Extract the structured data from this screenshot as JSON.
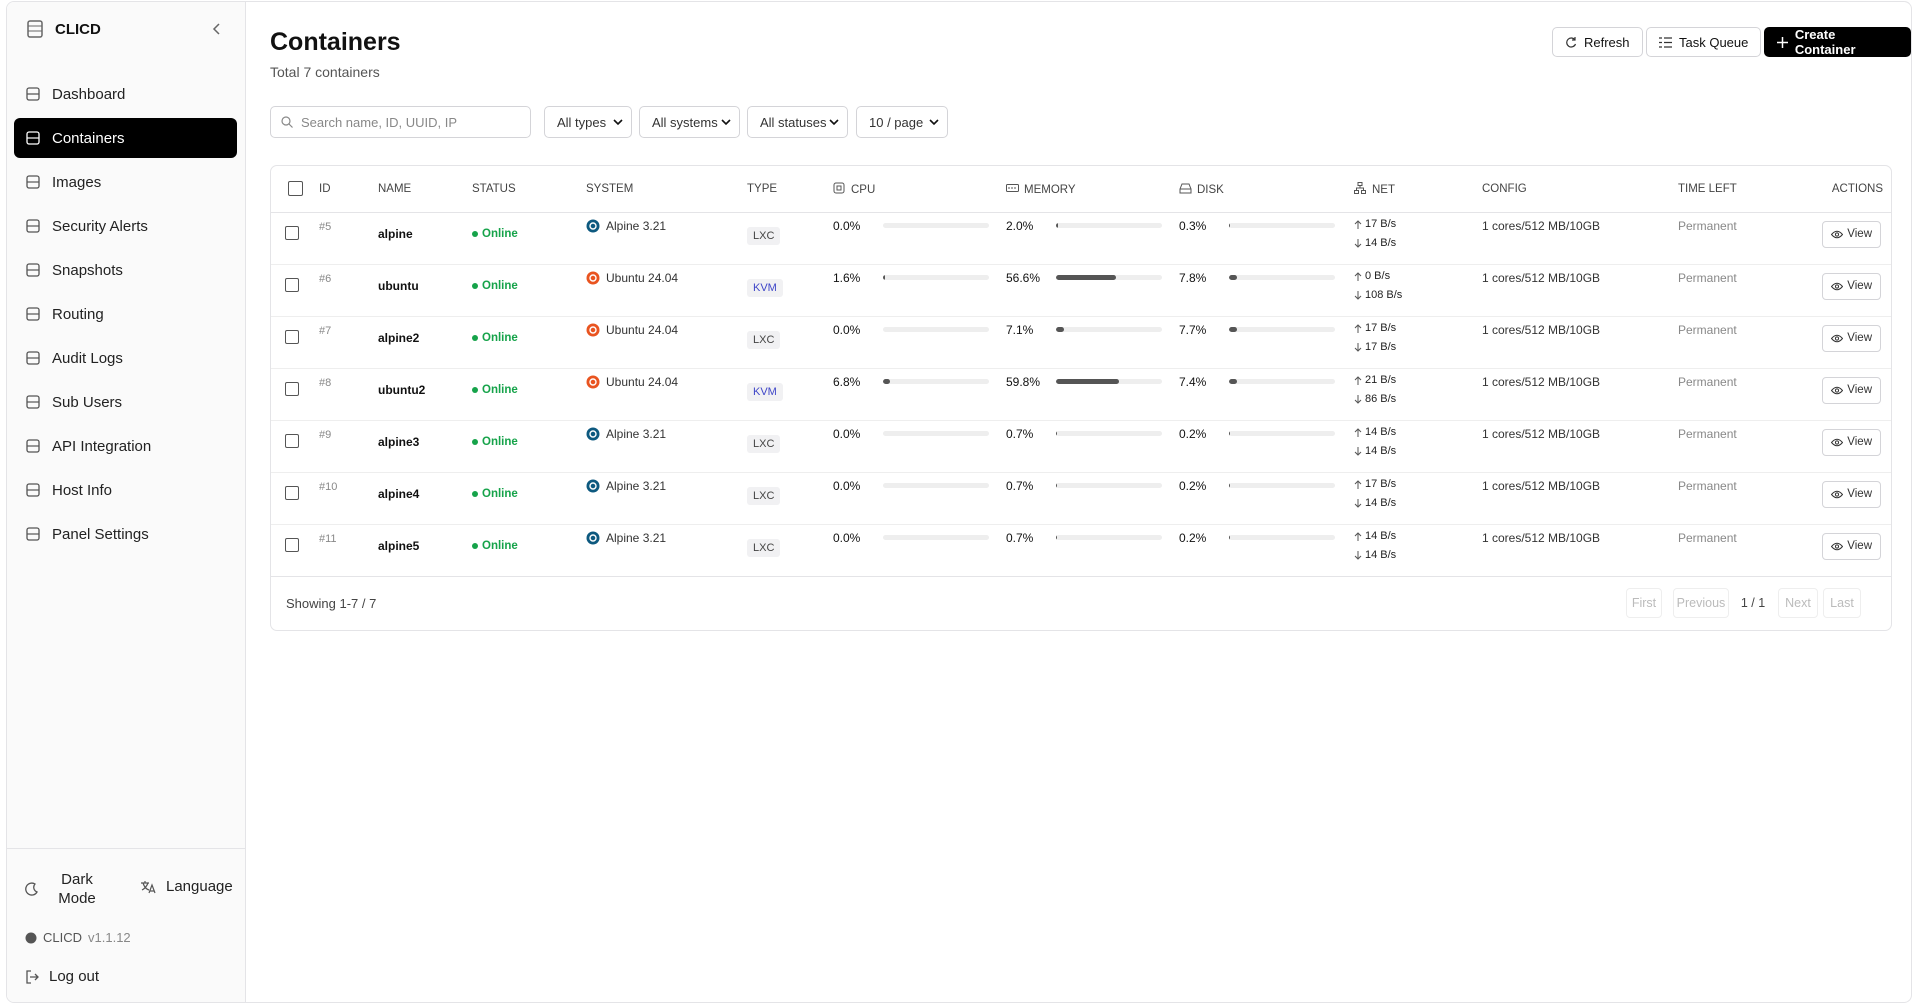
{
  "sidebar": {
    "brand": "CLICD",
    "nav": [
      "Dashboard",
      "Containers",
      "Images",
      "Security Alerts",
      "Snapshots",
      "Routing",
      "Audit Logs",
      "Sub Users",
      "API Integration",
      "Host Info",
      "Panel Settings"
    ],
    "dark_mode": "Dark Mode",
    "language": "Language",
    "app_name": "CLICD",
    "version": "v1.1.12",
    "logout": "Log out"
  },
  "header": {
    "title": "Containers",
    "subtitle": "Total 7 containers",
    "buttons": [
      "Refresh",
      "Task Queue",
      "Create Container"
    ]
  },
  "filters": {
    "search_placeholder": "Search name, ID, UUID, IP",
    "selects": [
      "All types",
      "All systems",
      "All statuses",
      "10 / page"
    ]
  },
  "table": {
    "columns": [
      "ID",
      "NAME",
      "STATUS",
      "SYSTEM",
      "TYPE",
      "CPU",
      "MEMORY",
      "DISK",
      "NET",
      "CONFIG",
      "TIME LEFT",
      "ACTIONS"
    ],
    "rows": [
      {
        "id": "#5",
        "name": "alpine",
        "status": "Online",
        "system": {
          "name": "Alpine 3.21",
          "color": "#0d597f"
        },
        "type": {
          "label": "LXC",
          "color": "#444444"
        },
        "cpu": {
          "value": 0.0,
          "label": "0.0%"
        },
        "memory": {
          "value": 2.0,
          "label": "2.0%"
        },
        "disk": {
          "value": 0.3,
          "label": "0.3%"
        },
        "net_up": "17 B/s",
        "net_down": "14 B/s",
        "config": "1 cores/512 MB/10GB",
        "time_left": "Permanent",
        "action": "View"
      },
      {
        "id": "#6",
        "name": "ubuntu",
        "status": "Online",
        "system": {
          "name": "Ubuntu 24.04",
          "color": "#e95420"
        },
        "type": {
          "label": "KVM",
          "color": "#3f46c8"
        },
        "cpu": {
          "value": 1.6,
          "label": "1.6%"
        },
        "memory": {
          "value": 56.6,
          "label": "56.6%"
        },
        "disk": {
          "value": 7.8,
          "label": "7.8%"
        },
        "net_up": "0 B/s",
        "net_down": "108 B/s",
        "config": "1 cores/512 MB/10GB",
        "time_left": "Permanent",
        "action": "View"
      },
      {
        "id": "#7",
        "name": "alpine2",
        "status": "Online",
        "system": {
          "name": "Ubuntu 24.04",
          "color": "#e95420"
        },
        "type": {
          "label": "LXC",
          "color": "#444444"
        },
        "cpu": {
          "value": 0.0,
          "label": "0.0%"
        },
        "memory": {
          "value": 7.1,
          "label": "7.1%"
        },
        "disk": {
          "value": 7.7,
          "label": "7.7%"
        },
        "net_up": "17 B/s",
        "net_down": "17 B/s",
        "config": "1 cores/512 MB/10GB",
        "time_left": "Permanent",
        "action": "View"
      },
      {
        "id": "#8",
        "name": "ubuntu2",
        "status": "Online",
        "system": {
          "name": "Ubuntu 24.04",
          "color": "#e95420"
        },
        "type": {
          "label": "KVM",
          "color": "#3f46c8"
        },
        "cpu": {
          "value": 6.8,
          "label": "6.8%"
        },
        "memory": {
          "value": 59.8,
          "label": "59.8%"
        },
        "disk": {
          "value": 7.4,
          "label": "7.4%"
        },
        "net_up": "21 B/s",
        "net_down": "86 B/s",
        "config": "1 cores/512 MB/10GB",
        "time_left": "Permanent",
        "action": "View"
      },
      {
        "id": "#9",
        "name": "alpine3",
        "status": "Online",
        "system": {
          "name": "Alpine 3.21",
          "color": "#0d597f"
        },
        "type": {
          "label": "LXC",
          "color": "#444444"
        },
        "cpu": {
          "value": 0.0,
          "label": "0.0%"
        },
        "memory": {
          "value": 0.7,
          "label": "0.7%"
        },
        "disk": {
          "value": 0.2,
          "label": "0.2%"
        },
        "net_up": "14 B/s",
        "net_down": "14 B/s",
        "config": "1 cores/512 MB/10GB",
        "time_left": "Permanent",
        "action": "View"
      },
      {
        "id": "#10",
        "name": "alpine4",
        "status": "Online",
        "system": {
          "name": "Alpine 3.21",
          "color": "#0d597f"
        },
        "type": {
          "label": "LXC",
          "color": "#444444"
        },
        "cpu": {
          "value": 0.0,
          "label": "0.0%"
        },
        "memory": {
          "value": 0.7,
          "label": "0.7%"
        },
        "disk": {
          "value": 0.2,
          "label": "0.2%"
        },
        "net_up": "17 B/s",
        "net_down": "14 B/s",
        "config": "1 cores/512 MB/10GB",
        "time_left": "Permanent",
        "action": "View"
      },
      {
        "id": "#11",
        "name": "alpine5",
        "status": "Online",
        "system": {
          "name": "Alpine 3.21",
          "color": "#0d597f"
        },
        "type": {
          "label": "LXC",
          "color": "#444444"
        },
        "cpu": {
          "value": 0.0,
          "label": "0.0%"
        },
        "memory": {
          "value": 0.7,
          "label": "0.7%"
        },
        "disk": {
          "value": 0.2,
          "label": "0.2%"
        },
        "net_up": "14 B/s",
        "net_down": "14 B/s",
        "config": "1 cores/512 MB/10GB",
        "time_left": "Permanent",
        "action": "View"
      }
    ]
  },
  "pagination": {
    "summary": "Showing 1-7 / 7",
    "first": "First",
    "previous": "Previous",
    "page": "1 / 1",
    "next": "Next",
    "last": "Last"
  }
}
